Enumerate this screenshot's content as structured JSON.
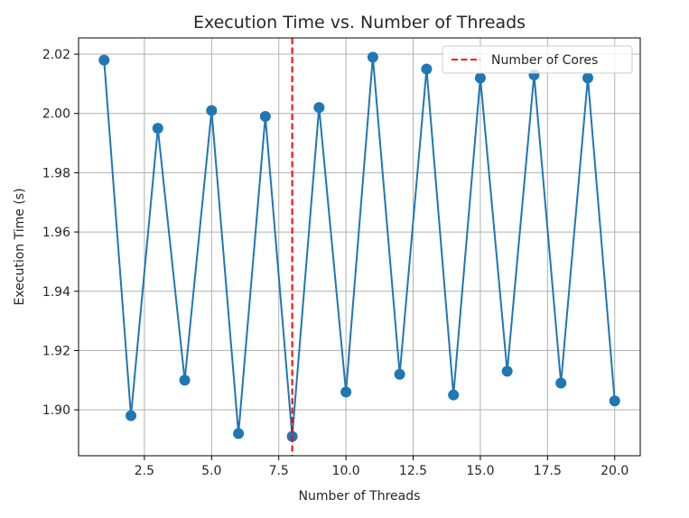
{
  "chart_data": {
    "type": "line",
    "title": "Execution Time vs. Number of Threads",
    "xlabel": "Number of Threads",
    "ylabel": "Execution Time (s)",
    "xlim": [
      0.05,
      20.95
    ],
    "ylim": [
      1.8845,
      2.0255
    ],
    "xticks": [
      2.5,
      5.0,
      7.5,
      10.0,
      12.5,
      15.0,
      17.5,
      20.0
    ],
    "xtick_labels": [
      "2.5",
      "5.0",
      "7.5",
      "10.0",
      "12.5",
      "15.0",
      "17.5",
      "20.0"
    ],
    "yticks": [
      1.9,
      1.92,
      1.94,
      1.96,
      1.98,
      2.0,
      2.02
    ],
    "ytick_labels": [
      "1.90",
      "1.92",
      "1.94",
      "1.96",
      "1.98",
      "2.00",
      "2.02"
    ],
    "grid": true,
    "series": [
      {
        "color": "#1f77b4",
        "marker": "circle",
        "x": [
          1,
          2,
          3,
          4,
          5,
          6,
          7,
          8,
          9,
          10,
          11,
          12,
          13,
          14,
          15,
          16,
          17,
          18,
          19,
          20
        ],
        "values": [
          2.018,
          1.898,
          1.995,
          1.91,
          2.001,
          1.892,
          1.999,
          1.891,
          2.002,
          1.906,
          2.019,
          1.912,
          2.015,
          1.905,
          2.012,
          1.913,
          2.013,
          1.909,
          2.012,
          1.903
        ]
      }
    ],
    "reference_lines": [
      {
        "name": "Number of Cores",
        "orientation": "vertical",
        "x": 8,
        "color": "#ff0000",
        "style": "dashed"
      }
    ],
    "legend": {
      "placement": "top-right",
      "entries": [
        "Number of Cores"
      ]
    }
  }
}
